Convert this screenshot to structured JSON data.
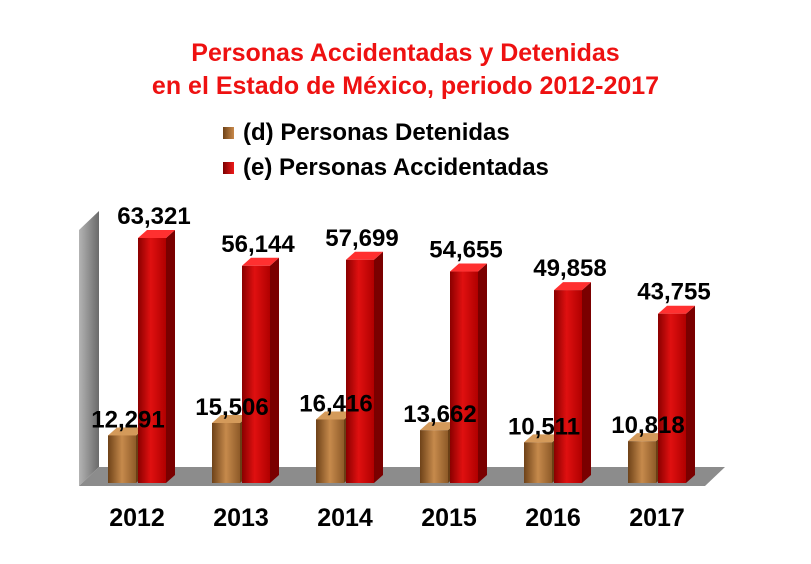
{
  "chart_data": {
    "type": "bar",
    "title": "Personas Accidentadas y Detenidas",
    "subtitle": "en el Estado de México, periodo 2012-2017",
    "categories": [
      "2012",
      "2013",
      "2014",
      "2015",
      "2016",
      "2017"
    ],
    "series": [
      {
        "name": "(d) Personas Detenidas",
        "values": [
          12291,
          15506,
          16416,
          13662,
          10511,
          10818
        ],
        "labels": [
          "12,291",
          "15,506",
          "16,416",
          "13,662",
          "10,511",
          "10,818"
        ],
        "color": "#a0692e"
      },
      {
        "name": "(e) Personas Accidentadas",
        "values": [
          63321,
          56144,
          57699,
          54655,
          49858,
          43755
        ],
        "labels": [
          "63,321",
          "56,144",
          "57,699",
          "54,655",
          "49,858",
          "43,755"
        ],
        "color": "#cc0000"
      }
    ],
    "ylim": [
      0,
      75000
    ],
    "xlabel": "",
    "ylabel": "",
    "grid": false,
    "legend": "top",
    "three_d": true
  },
  "colors": {
    "title": "#ee1111",
    "wall": "#8c8c8c",
    "floor": "#8c8c8c"
  }
}
